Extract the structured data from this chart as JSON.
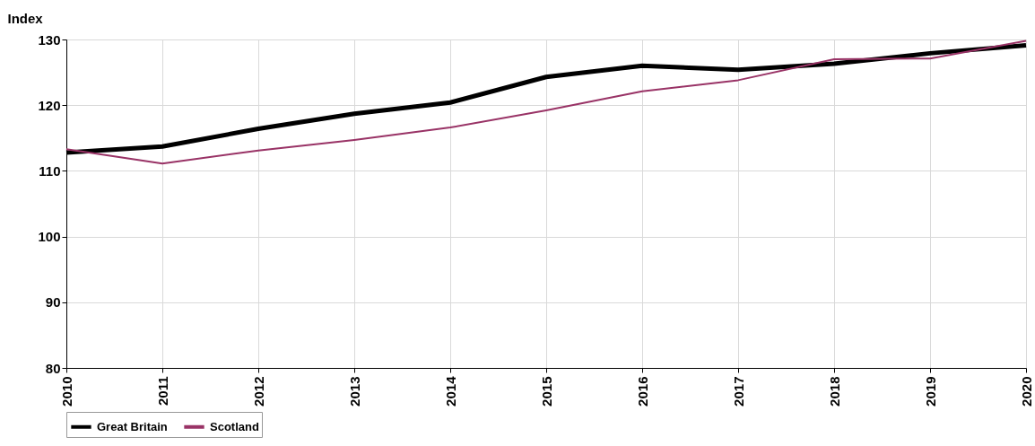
{
  "chart_data": {
    "type": "line",
    "ylabel": "Index",
    "categories": [
      "2010",
      "2011",
      "2012",
      "2013",
      "2014",
      "2015",
      "2016",
      "2017",
      "2018",
      "2019",
      "2020"
    ],
    "series": [
      {
        "name": "Great Britain",
        "color": "#000000",
        "values": [
          112.8,
          113.7,
          116.4,
          118.7,
          120.4,
          124.3,
          126.0,
          125.4,
          126.3,
          127.9,
          129.1
        ]
      },
      {
        "name": "Scotland",
        "color": "#993366",
        "values": [
          113.3,
          111.1,
          113.1,
          114.7,
          116.6,
          119.2,
          122.1,
          123.8,
          127.0,
          127.1,
          129.8
        ]
      }
    ],
    "ylim": [
      80,
      130
    ],
    "yticks": [
      80,
      90,
      100,
      110,
      120,
      130
    ],
    "grid": true,
    "legend": "bottom",
    "marker": "none"
  }
}
